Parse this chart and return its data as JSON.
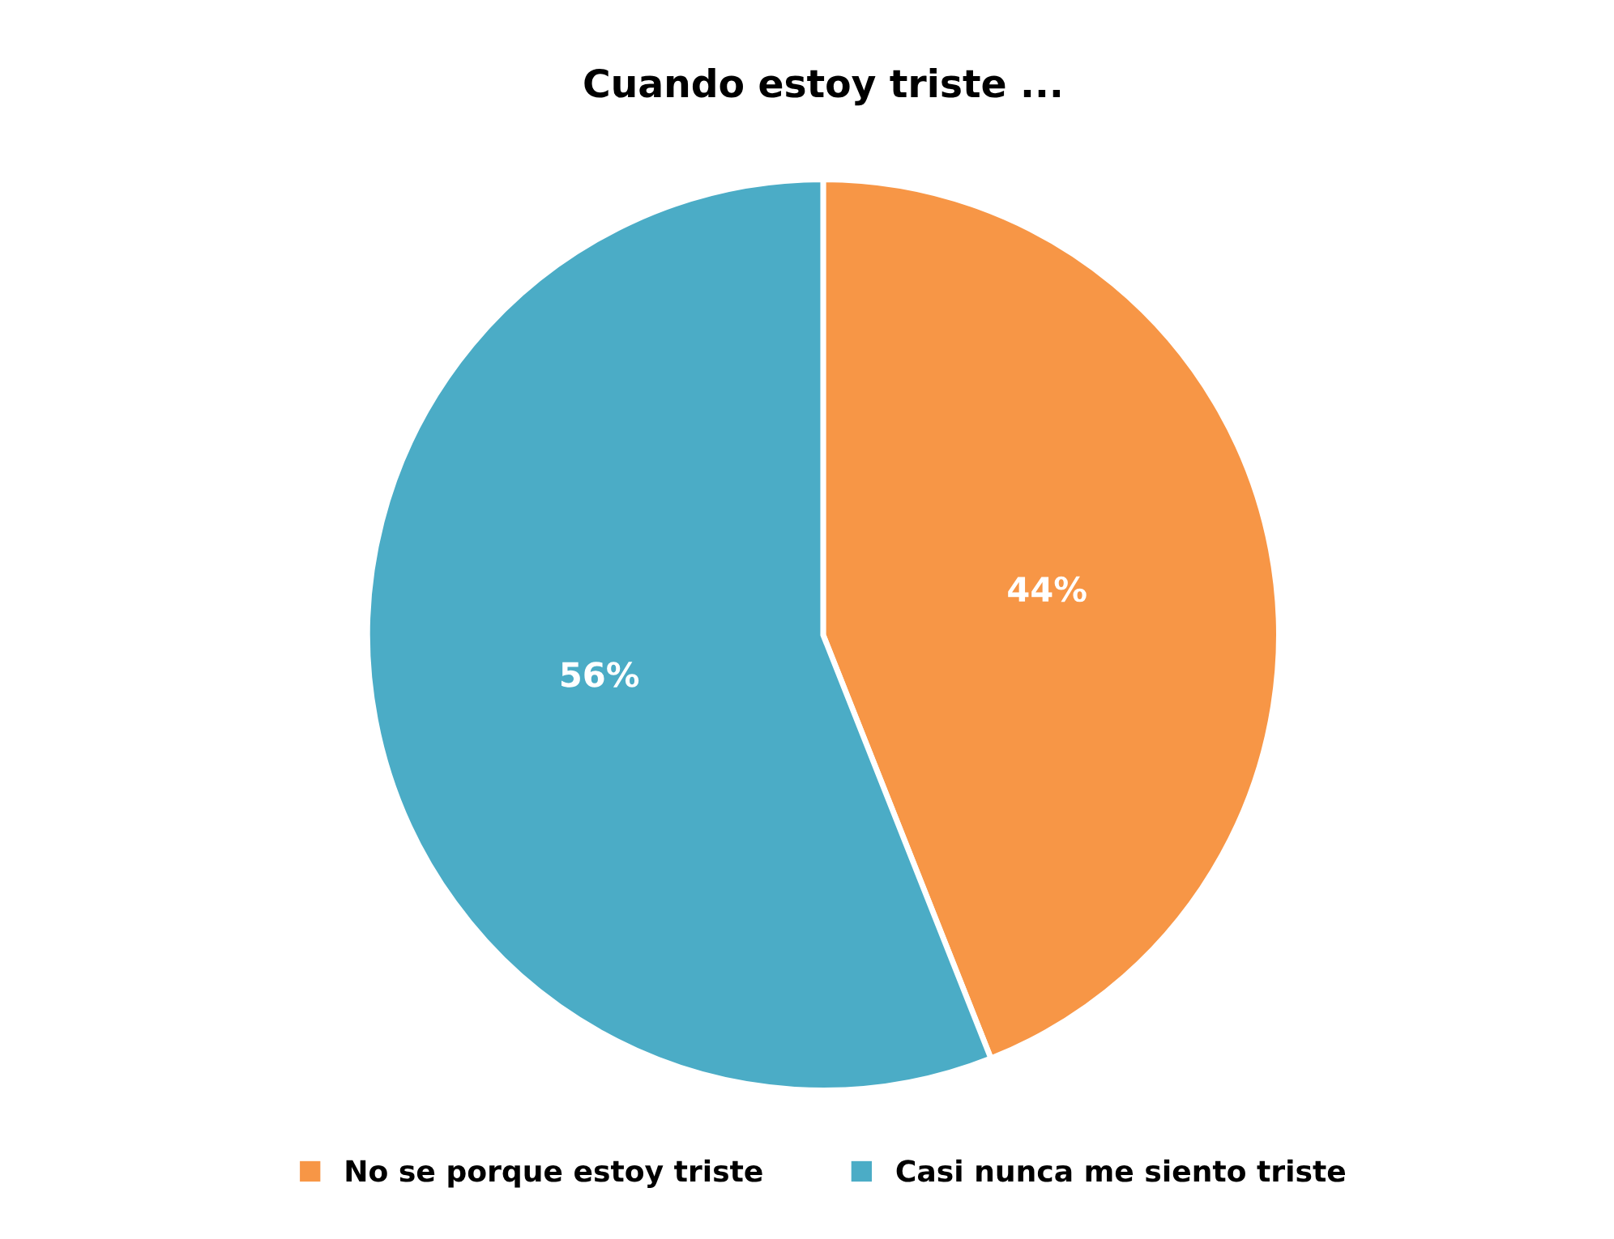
{
  "chart_data": {
    "type": "pie",
    "title": "Cuando estoy triste ...",
    "categories": [
      "No se porque estoy triste",
      "Casi nunca me siento triste"
    ],
    "values": [
      44,
      56
    ],
    "colors": [
      "#f79646",
      "#4bacc6"
    ],
    "value_labels": [
      "44%",
      "56%"
    ],
    "legend": "bottom"
  }
}
